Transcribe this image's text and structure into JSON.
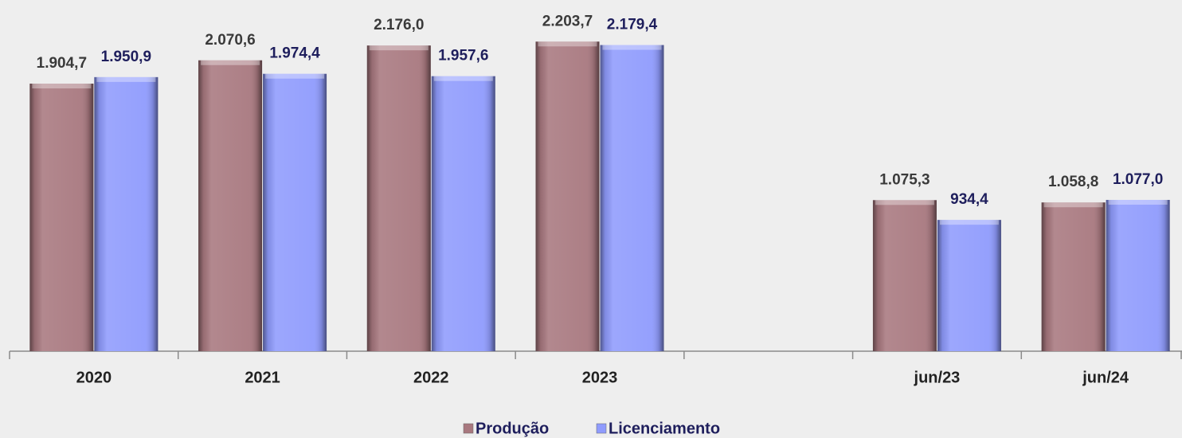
{
  "chart_data": {
    "type": "bar",
    "categories": [
      "2020",
      "2021",
      "2022",
      "2023",
      null,
      "jun/23",
      "jun/24"
    ],
    "series": [
      {
        "name": "Produção",
        "color": "#a8787f",
        "label_color": "#3a3a3a",
        "values": [
          1904.7,
          2070.6,
          2176.0,
          2203.7,
          null,
          1075.3,
          1058.8
        ],
        "value_labels": [
          "1.904,7",
          "2.070,6",
          "2.176,0",
          "2.203,7",
          null,
          "1.075,3",
          "1.058,8"
        ]
      },
      {
        "name": "Licenciamento",
        "color": "#8f9bfd",
        "label_color": "#1e1e5c",
        "values": [
          1950.9,
          1974.4,
          1957.6,
          2179.4,
          null,
          934.4,
          1077.0
        ],
        "value_labels": [
          "1.950,9",
          "1.974,4",
          "1.957,6",
          "2.179,4",
          null,
          "934,4",
          "1.077,0"
        ]
      }
    ],
    "ylim": [
      0,
      2500
    ],
    "legend": "bottom"
  }
}
